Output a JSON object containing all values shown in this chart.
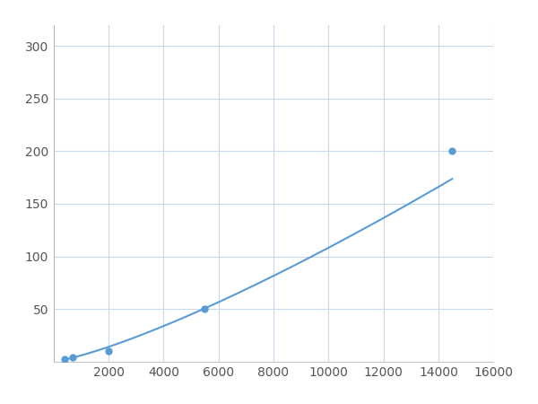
{
  "x_points": [
    400,
    700,
    2000,
    5500,
    14500
  ],
  "y_points": [
    2,
    4,
    10,
    50,
    200
  ],
  "line_color": "#5B9BD5",
  "marker_color": "#5B9BD5",
  "marker_size": 5,
  "line_width": 1.5,
  "xlim": [
    0,
    16000
  ],
  "ylim": [
    0,
    320
  ],
  "xticks": [
    0,
    2000,
    4000,
    6000,
    8000,
    10000,
    12000,
    14000,
    16000
  ],
  "yticks": [
    0,
    50,
    100,
    150,
    200,
    250,
    300
  ],
  "grid_color": "#C8D8E8",
  "grid_linewidth": 0.8,
  "bg_color": "#FFFFFF",
  "tick_fontsize": 10,
  "tick_color": "#555555"
}
